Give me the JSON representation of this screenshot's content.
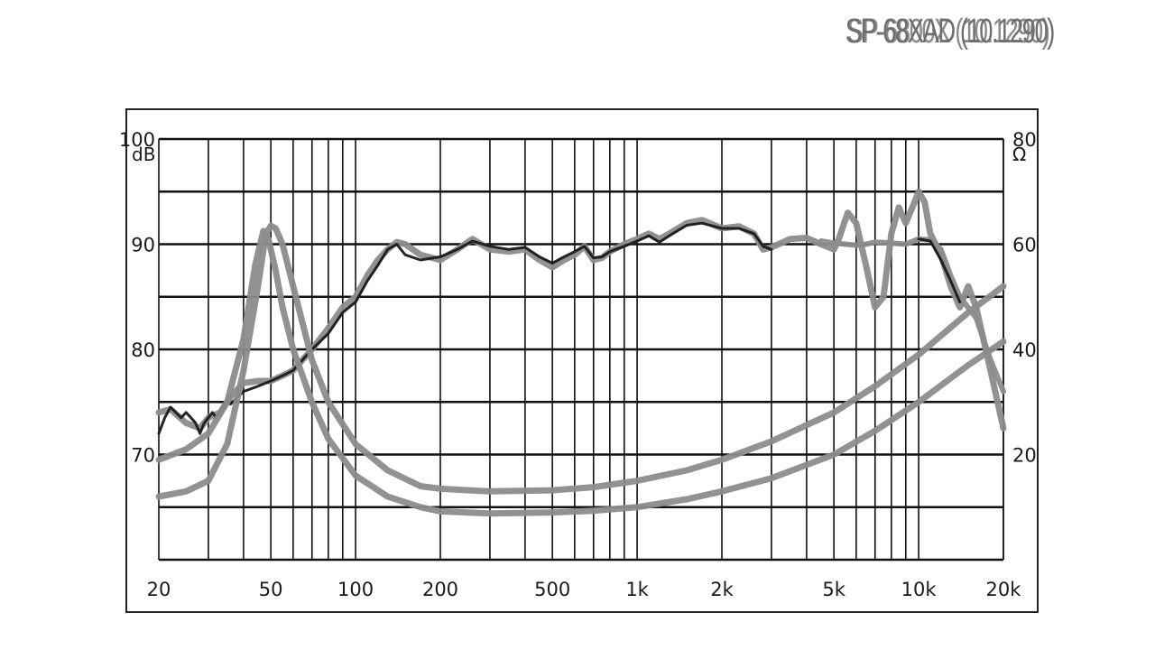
{
  "chart_data": {
    "type": "line",
    "title_overlay": [
      "SP-68XAD (10.1290)",
      "SP-6800X (10.1290)"
    ],
    "x_scale": "log",
    "xlim": [
      20,
      20000
    ],
    "x_ticks": [
      {
        "value": 20,
        "label": "20"
      },
      {
        "value": 50,
        "label": "50"
      },
      {
        "value": 100,
        "label": "100"
      },
      {
        "value": 200,
        "label": "200"
      },
      {
        "value": 500,
        "label": "500"
      },
      {
        "value": 1000,
        "label": "1k"
      },
      {
        "value": 2000,
        "label": "2k"
      },
      {
        "value": 5000,
        "label": "5k"
      },
      {
        "value": 10000,
        "label": "10k"
      },
      {
        "value": 20000,
        "label": "20k"
      }
    ],
    "y_left": {
      "unit": "dB",
      "range": [
        60,
        100
      ],
      "ticks": [
        70,
        80,
        90,
        100
      ]
    },
    "y_right": {
      "unit": "Ω",
      "range": [
        0,
        80
      ],
      "ticks": [
        {
          "value": 20,
          "label": "20"
        },
        {
          "value": 40,
          "label": "40"
        },
        {
          "value": 60,
          "label": "60"
        },
        {
          "value": 80,
          "label": "80"
        }
      ]
    },
    "grid": true,
    "legend": "none",
    "series": [
      {
        "axis": "left",
        "color": "#8c8c8c",
        "width": 7,
        "points": [
          [
            20,
            74
          ],
          [
            22,
            74.3
          ],
          [
            25,
            73
          ],
          [
            28,
            72.5
          ],
          [
            30,
            73.5
          ],
          [
            33,
            74
          ],
          [
            36,
            75.5
          ],
          [
            40,
            76.8
          ],
          [
            45,
            77
          ],
          [
            50,
            77
          ],
          [
            55,
            77.5
          ],
          [
            60,
            78
          ],
          [
            70,
            80
          ],
          [
            80,
            82
          ],
          [
            90,
            84
          ],
          [
            100,
            85
          ],
          [
            110,
            87
          ],
          [
            120,
            88.5
          ],
          [
            130,
            89.5
          ],
          [
            140,
            90.2
          ],
          [
            150,
            90
          ],
          [
            170,
            89
          ],
          [
            200,
            88.5
          ],
          [
            230,
            89.5
          ],
          [
            260,
            90.5
          ],
          [
            300,
            89.5
          ],
          [
            350,
            89.3
          ],
          [
            400,
            89.5
          ],
          [
            450,
            88.5
          ],
          [
            500,
            87.8
          ],
          [
            550,
            88.5
          ],
          [
            600,
            89
          ],
          [
            650,
            89.8
          ],
          [
            700,
            88.5
          ],
          [
            750,
            88.7
          ],
          [
            800,
            89.3
          ],
          [
            900,
            90
          ],
          [
            1000,
            90.5
          ],
          [
            1100,
            91
          ],
          [
            1200,
            90.5
          ],
          [
            1300,
            91
          ],
          [
            1500,
            92
          ],
          [
            1700,
            92.3
          ],
          [
            2000,
            91.5
          ],
          [
            2300,
            91.7
          ],
          [
            2600,
            91
          ],
          [
            2800,
            89.5
          ],
          [
            3000,
            89.7
          ],
          [
            3500,
            90.5
          ],
          [
            4000,
            90.6
          ],
          [
            4500,
            90
          ],
          [
            5000,
            89.5
          ],
          [
            5200,
            90.5
          ],
          [
            5600,
            93
          ],
          [
            6000,
            92
          ],
          [
            6500,
            88
          ],
          [
            7000,
            84
          ],
          [
            7500,
            85
          ],
          [
            8000,
            91
          ],
          [
            8500,
            93.5
          ],
          [
            9000,
            92
          ],
          [
            9500,
            93.5
          ],
          [
            10000,
            95
          ],
          [
            10500,
            94
          ],
          [
            11000,
            91
          ],
          [
            12000,
            89
          ],
          [
            13000,
            86
          ],
          [
            14000,
            84
          ],
          [
            15000,
            86
          ],
          [
            16000,
            84
          ],
          [
            18000,
            78
          ],
          [
            20000,
            72.5
          ]
        ]
      },
      {
        "axis": "left",
        "color": "#1a1a1a",
        "width": 3,
        "points": [
          [
            20,
            72
          ],
          [
            21,
            73.5
          ],
          [
            22,
            74.5
          ],
          [
            23,
            74
          ],
          [
            24,
            73.5
          ],
          [
            25,
            74
          ],
          [
            26,
            73.5
          ],
          [
            27,
            73
          ],
          [
            28,
            72
          ],
          [
            29,
            73
          ],
          [
            30,
            73.5
          ],
          [
            31,
            74
          ],
          [
            32,
            73.5
          ],
          [
            33,
            74
          ],
          [
            35,
            75
          ],
          [
            36,
            74.8
          ],
          [
            40,
            76
          ],
          [
            45,
            76.5
          ],
          [
            50,
            77
          ],
          [
            55,
            77.5
          ],
          [
            60,
            78
          ],
          [
            70,
            80
          ],
          [
            80,
            81.5
          ],
          [
            90,
            83.5
          ],
          [
            100,
            84.5
          ],
          [
            110,
            86.5
          ],
          [
            120,
            88
          ],
          [
            130,
            89.5
          ],
          [
            140,
            90
          ],
          [
            150,
            89
          ],
          [
            170,
            88.5
          ],
          [
            200,
            88.8
          ],
          [
            230,
            89.5
          ],
          [
            260,
            90.3
          ],
          [
            300,
            89.8
          ],
          [
            350,
            89.5
          ],
          [
            400,
            89.7
          ],
          [
            450,
            88.8
          ],
          [
            500,
            88.2
          ],
          [
            550,
            88.8
          ],
          [
            600,
            89.3
          ],
          [
            650,
            89.8
          ],
          [
            700,
            88.7
          ],
          [
            750,
            88.8
          ],
          [
            800,
            89.3
          ],
          [
            900,
            89.8
          ],
          [
            1000,
            90.3
          ],
          [
            1100,
            90.8
          ],
          [
            1200,
            90.2
          ],
          [
            1300,
            90.8
          ],
          [
            1500,
            91.8
          ],
          [
            1700,
            92
          ],
          [
            2000,
            91.5
          ],
          [
            2300,
            91.5
          ],
          [
            2600,
            91
          ],
          [
            2800,
            89.8
          ],
          [
            3000,
            89.5
          ]
        ]
      },
      {
        "axis": "left",
        "color": "#8c8c8c",
        "width": 6,
        "points": [
          [
            4500,
            90.3
          ],
          [
            5000,
            90.1
          ],
          [
            5500,
            90
          ],
          [
            6000,
            89.9
          ],
          [
            6500,
            90
          ],
          [
            7000,
            90.2
          ],
          [
            8000,
            90.1
          ],
          [
            9000,
            90
          ],
          [
            10000,
            90.5
          ],
          [
            11000,
            90.4
          ],
          [
            12000,
            89.5
          ],
          [
            13000,
            87
          ],
          [
            14000,
            85
          ],
          [
            16000,
            83
          ],
          [
            18000,
            79
          ],
          [
            20000,
            76
          ]
        ]
      },
      {
        "axis": "left",
        "color": "#1a1a1a",
        "width": 3,
        "points": [
          [
            10000,
            90.5
          ],
          [
            11000,
            90.3
          ],
          [
            12000,
            88.5
          ],
          [
            13000,
            86.5
          ],
          [
            14000,
            84.5
          ]
        ]
      },
      {
        "axis": "right",
        "color": "#8c8c8c",
        "width": 7,
        "points": [
          [
            20,
            12
          ],
          [
            25,
            13
          ],
          [
            30,
            15
          ],
          [
            35,
            22
          ],
          [
            40,
            36
          ],
          [
            45,
            52
          ],
          [
            48,
            62
          ],
          [
            50,
            63.5
          ],
          [
            52,
            63
          ],
          [
            55,
            60
          ],
          [
            60,
            52
          ],
          [
            70,
            38
          ],
          [
            80,
            30
          ],
          [
            100,
            22
          ],
          [
            130,
            17
          ],
          [
            170,
            14
          ],
          [
            200,
            13.5
          ],
          [
            300,
            13
          ],
          [
            500,
            13.2
          ],
          [
            700,
            13.8
          ],
          [
            1000,
            15
          ],
          [
            1500,
            17
          ],
          [
            2000,
            19
          ],
          [
            3000,
            22.5
          ],
          [
            5000,
            28
          ],
          [
            7000,
            33
          ],
          [
            10000,
            39
          ],
          [
            15000,
            47
          ],
          [
            20000,
            52
          ]
        ]
      },
      {
        "axis": "right",
        "color": "#8c8c8c",
        "width": 7,
        "points": [
          [
            20,
            19
          ],
          [
            25,
            21
          ],
          [
            30,
            24
          ],
          [
            35,
            30
          ],
          [
            40,
            42
          ],
          [
            44,
            56
          ],
          [
            47,
            62.5
          ],
          [
            49,
            61
          ],
          [
            52,
            55
          ],
          [
            55,
            48
          ],
          [
            60,
            40
          ],
          [
            70,
            30
          ],
          [
            80,
            23
          ],
          [
            100,
            16
          ],
          [
            130,
            12
          ],
          [
            170,
            10
          ],
          [
            200,
            9.2
          ],
          [
            300,
            8.8
          ],
          [
            500,
            9
          ],
          [
            700,
            9.3
          ],
          [
            1000,
            10
          ],
          [
            1500,
            11.5
          ],
          [
            2000,
            13
          ],
          [
            3000,
            15.5
          ],
          [
            5000,
            20
          ],
          [
            7000,
            24.5
          ],
          [
            10000,
            30
          ],
          [
            15000,
            37
          ],
          [
            20000,
            41.5
          ]
        ]
      }
    ]
  }
}
